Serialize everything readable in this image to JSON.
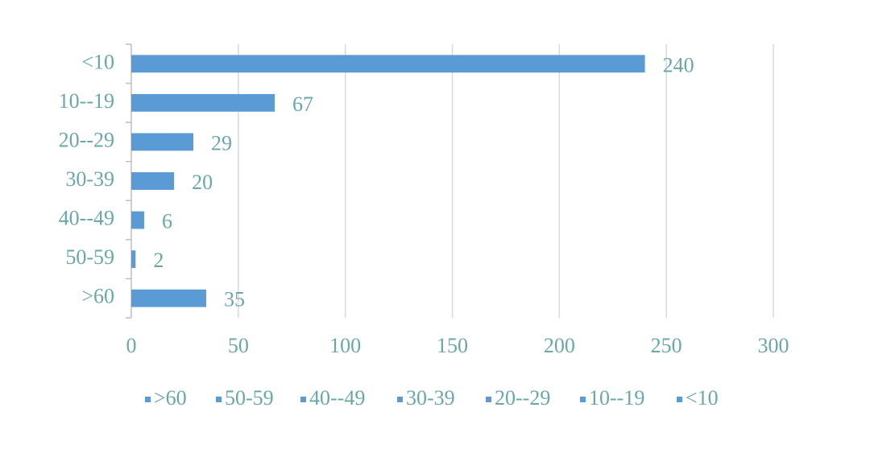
{
  "chart_data": {
    "type": "bar",
    "orientation": "horizontal",
    "categories": [
      "<10",
      "10--19",
      "20--29",
      "30-39",
      "40--49",
      "50-59",
      ">60"
    ],
    "values": [
      240,
      67,
      29,
      20,
      6,
      2,
      35
    ],
    "color": "#5b9bd5",
    "xlim": [
      0,
      300
    ],
    "xticks": [
      0,
      50,
      100,
      150,
      200,
      250,
      300
    ],
    "grid": true,
    "legend": "bottom"
  }
}
